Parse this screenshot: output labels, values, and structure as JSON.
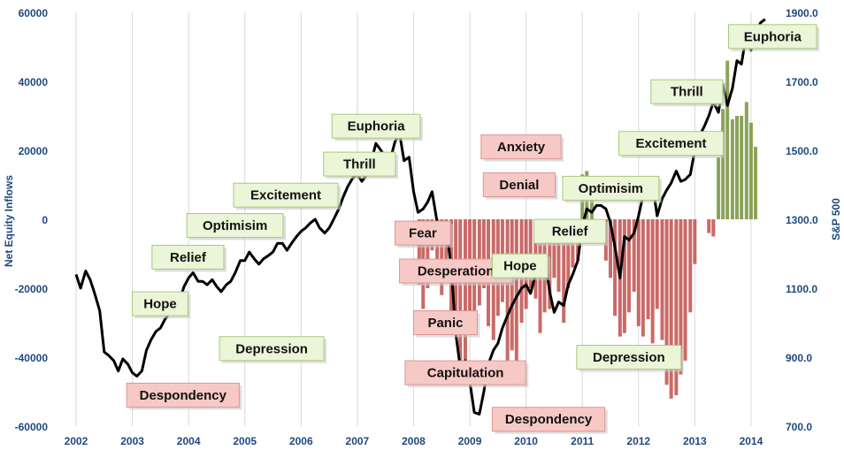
{
  "chart_data": {
    "type": "bar",
    "title": "",
    "xlabel": "",
    "ylabel": "Net Equity Inflows",
    "y2label": "S&P 500",
    "xlim": [
      2002,
      2014.3
    ],
    "ylim": [
      -60000,
      60000
    ],
    "y2lim": [
      700,
      1900
    ],
    "x_ticks": [
      "2002",
      "2003",
      "2004",
      "2005",
      "2006",
      "2007",
      "2008",
      "2009",
      "2010",
      "2011",
      "2012",
      "2013",
      "2014"
    ],
    "y_ticks": [
      "60000",
      "40000",
      "20000",
      "0",
      "-20000",
      "-40000",
      "-60000"
    ],
    "y2_ticks": [
      "1900.0",
      "1700.0",
      "1500.0",
      "1300.0",
      "1100.0",
      "900.0",
      "700.0"
    ],
    "grid": "vertical",
    "colors": {
      "positive_bar": "#77933c",
      "negative_bar": "#c0504d",
      "line": "#000000",
      "green_label": "#ebf5d7",
      "red_label": "#f6c9c7"
    },
    "series": [
      {
        "type": "bar",
        "x": [
          2008.1,
          2008.17,
          2008.25,
          2008.33,
          2008.42,
          2008.5,
          2008.58,
          2008.67,
          2008.75,
          2008.83,
          2008.92,
          2009.0,
          2009.08,
          2009.17,
          2009.25,
          2009.33,
          2009.42,
          2009.5,
          2009.58,
          2009.67,
          2009.75,
          2009.83,
          2009.92,
          2010.0,
          2010.08,
          2010.17,
          2010.25,
          2010.33,
          2010.42,
          2010.5,
          2010.58,
          2010.67,
          2010.75,
          2010.83,
          2010.92,
          2011.0,
          2011.08,
          2011.17,
          2011.25,
          2011.33,
          2011.42,
          2011.5,
          2011.58,
          2011.67,
          2011.75,
          2011.83,
          2011.92,
          2012.0,
          2012.08,
          2012.17,
          2012.25,
          2012.33,
          2012.42,
          2012.5,
          2012.58,
          2012.67,
          2012.75,
          2012.83,
          2012.92,
          2013.0,
          2013.25,
          2013.33,
          2013.42,
          2013.5,
          2013.58,
          2013.67,
          2013.75,
          2013.83,
          2013.92,
          2014.0,
          2014.08
        ],
        "values": [
          -19000,
          -26000,
          -20000,
          -9000,
          -18000,
          -22000,
          -17000,
          -31000,
          -28000,
          -45000,
          -42000,
          -33000,
          -30000,
          -25000,
          -20000,
          -31000,
          -35000,
          -28000,
          -24000,
          -47000,
          -38000,
          -42000,
          -30000,
          -26000,
          -20000,
          -23000,
          -33000,
          -27000,
          -26000,
          -17000,
          -21000,
          -30000,
          -20000,
          -14000,
          -12000,
          13000,
          14000,
          11000,
          -6000,
          -3000,
          -12000,
          -17000,
          -28000,
          -34000,
          -33000,
          -27000,
          -21000,
          -31000,
          -34000,
          -29000,
          -36000,
          -26000,
          -35000,
          -48000,
          -52000,
          -51000,
          -45000,
          -41000,
          -27000,
          -13000,
          -4000,
          -5000,
          18000,
          32000,
          46000,
          29000,
          30000,
          30000,
          34000,
          28000,
          21000
        ]
      },
      {
        "type": "line",
        "name": "S&P 500",
        "x": [
          2002.0,
          2002.08,
          2002.17,
          2002.25,
          2002.33,
          2002.42,
          2002.5,
          2002.58,
          2002.67,
          2002.75,
          2002.83,
          2002.92,
          2003.0,
          2003.08,
          2003.17,
          2003.25,
          2003.33,
          2003.42,
          2003.5,
          2003.58,
          2003.67,
          2003.75,
          2003.83,
          2003.92,
          2004.0,
          2004.08,
          2004.17,
          2004.25,
          2004.33,
          2004.42,
          2004.5,
          2004.58,
          2004.67,
          2004.75,
          2004.83,
          2004.92,
          2005.0,
          2005.08,
          2005.17,
          2005.25,
          2005.33,
          2005.42,
          2005.5,
          2005.58,
          2005.67,
          2005.75,
          2005.83,
          2005.92,
          2006.0,
          2006.08,
          2006.17,
          2006.25,
          2006.33,
          2006.42,
          2006.5,
          2006.58,
          2006.67,
          2006.75,
          2006.83,
          2006.92,
          2007.0,
          2007.08,
          2007.17,
          2007.25,
          2007.33,
          2007.42,
          2007.5,
          2007.58,
          2007.67,
          2007.75,
          2007.83,
          2007.92,
          2008.0,
          2008.08,
          2008.17,
          2008.25,
          2008.33,
          2008.42,
          2008.5,
          2008.58,
          2008.67,
          2008.75,
          2008.83,
          2008.92,
          2009.0,
          2009.08,
          2009.17,
          2009.25,
          2009.33,
          2009.42,
          2009.5,
          2009.58,
          2009.67,
          2009.75,
          2009.83,
          2009.92,
          2010.0,
          2010.08,
          2010.17,
          2010.25,
          2010.33,
          2010.42,
          2010.5,
          2010.58,
          2010.67,
          2010.75,
          2010.83,
          2010.92,
          2011.0,
          2011.08,
          2011.17,
          2011.25,
          2011.33,
          2011.42,
          2011.5,
          2011.58,
          2011.67,
          2011.75,
          2011.83,
          2011.92,
          2012.0,
          2012.08,
          2012.17,
          2012.25,
          2012.33,
          2012.42,
          2012.5,
          2012.58,
          2012.67,
          2012.75,
          2012.83,
          2012.92,
          2013.0,
          2013.08,
          2013.17,
          2013.25,
          2013.33,
          2013.42,
          2013.5,
          2013.58,
          2013.67,
          2013.75,
          2013.83,
          2013.92,
          2014.0,
          2014.08,
          2014.17,
          2014.25
        ],
        "values": [
          1140,
          1100,
          1150,
          1125,
          1085,
          1035,
          915,
          905,
          890,
          860,
          895,
          880,
          855,
          845,
          860,
          920,
          950,
          975,
          985,
          1010,
          1030,
          1055,
          1060,
          1105,
          1130,
          1145,
          1120,
          1120,
          1110,
          1125,
          1105,
          1090,
          1110,
          1120,
          1145,
          1180,
          1180,
          1205,
          1185,
          1170,
          1185,
          1195,
          1205,
          1230,
          1230,
          1210,
          1230,
          1250,
          1265,
          1275,
          1290,
          1300,
          1275,
          1260,
          1275,
          1300,
          1330,
          1365,
          1395,
          1420,
          1430,
          1410,
          1430,
          1470,
          1520,
          1500,
          1480,
          1470,
          1525,
          1550,
          1470,
          1480,
          1380,
          1320,
          1330,
          1350,
          1380,
          1290,
          1260,
          1280,
          1160,
          970,
          870,
          890,
          830,
          740,
          735,
          800,
          880,
          920,
          940,
          985,
          1020,
          1050,
          1075,
          1100,
          1110,
          1085,
          1140,
          1180,
          1190,
          1090,
          1030,
          1060,
          1050,
          1110,
          1140,
          1180,
          1280,
          1330,
          1320,
          1340,
          1340,
          1330,
          1290,
          1220,
          1130,
          1250,
          1240,
          1260,
          1310,
          1370,
          1410,
          1400,
          1310,
          1360,
          1385,
          1405,
          1440,
          1410,
          1415,
          1430,
          1500,
          1540,
          1570,
          1600,
          1640,
          1610,
          1690,
          1630,
          1680,
          1760,
          1750,
          1840,
          1790,
          1840,
          1870,
          1880
        ]
      }
    ],
    "annotations": [
      {
        "text": "Despondency",
        "tone": "red",
        "x": 2002.9,
        "y": -51000
      },
      {
        "text": "Hope",
        "tone": "green",
        "x": 2003.0,
        "y": -24500
      },
      {
        "text": "Relief",
        "tone": "green",
        "x": 2003.35,
        "y": -11000
      },
      {
        "text": "Optimisim",
        "tone": "green",
        "x": 2003.97,
        "y": -1800
      },
      {
        "text": "Depression",
        "tone": "green",
        "x": 2004.55,
        "y": -37500
      },
      {
        "text": "Excitement",
        "tone": "green",
        "x": 2004.8,
        "y": 7000
      },
      {
        "text": "Thrill",
        "tone": "green",
        "x": 2006.4,
        "y": 16000
      },
      {
        "text": "Euphoria",
        "tone": "green",
        "x": 2006.55,
        "y": 27000
      },
      {
        "text": "Fear",
        "tone": "red",
        "x": 2007.67,
        "y": -4000
      },
      {
        "text": "Desperation",
        "tone": "red",
        "x": 2007.75,
        "y": -15000
      },
      {
        "text": "Panic",
        "tone": "red",
        "x": 2008.0,
        "y": -30000
      },
      {
        "text": "Capitulation",
        "tone": "red",
        "x": 2007.85,
        "y": -44500
      },
      {
        "text": "Anxiety",
        "tone": "red",
        "x": 2009.2,
        "y": 21000
      },
      {
        "text": "Denial",
        "tone": "red",
        "x": 2009.24,
        "y": 10000
      },
      {
        "text": "Hope",
        "tone": "green",
        "x": 2009.4,
        "y": -13500
      },
      {
        "text": "Relief",
        "tone": "green",
        "x": 2010.14,
        "y": -3500
      },
      {
        "text": "Optimisim",
        "tone": "green",
        "x": 2010.65,
        "y": 9000
      },
      {
        "text": "Depression",
        "tone": "green",
        "x": 2010.9,
        "y": -40000
      },
      {
        "text": "Despondency",
        "tone": "red",
        "x": 2009.4,
        "y": -58000
      },
      {
        "text": "Excitement",
        "tone": "green",
        "x": 2011.65,
        "y": 22000
      },
      {
        "text": "Thrill",
        "tone": "green",
        "x": 2012.22,
        "y": 37000
      },
      {
        "text": "Euphoria",
        "tone": "green",
        "x": 2013.6,
        "y": 53000
      }
    ]
  }
}
